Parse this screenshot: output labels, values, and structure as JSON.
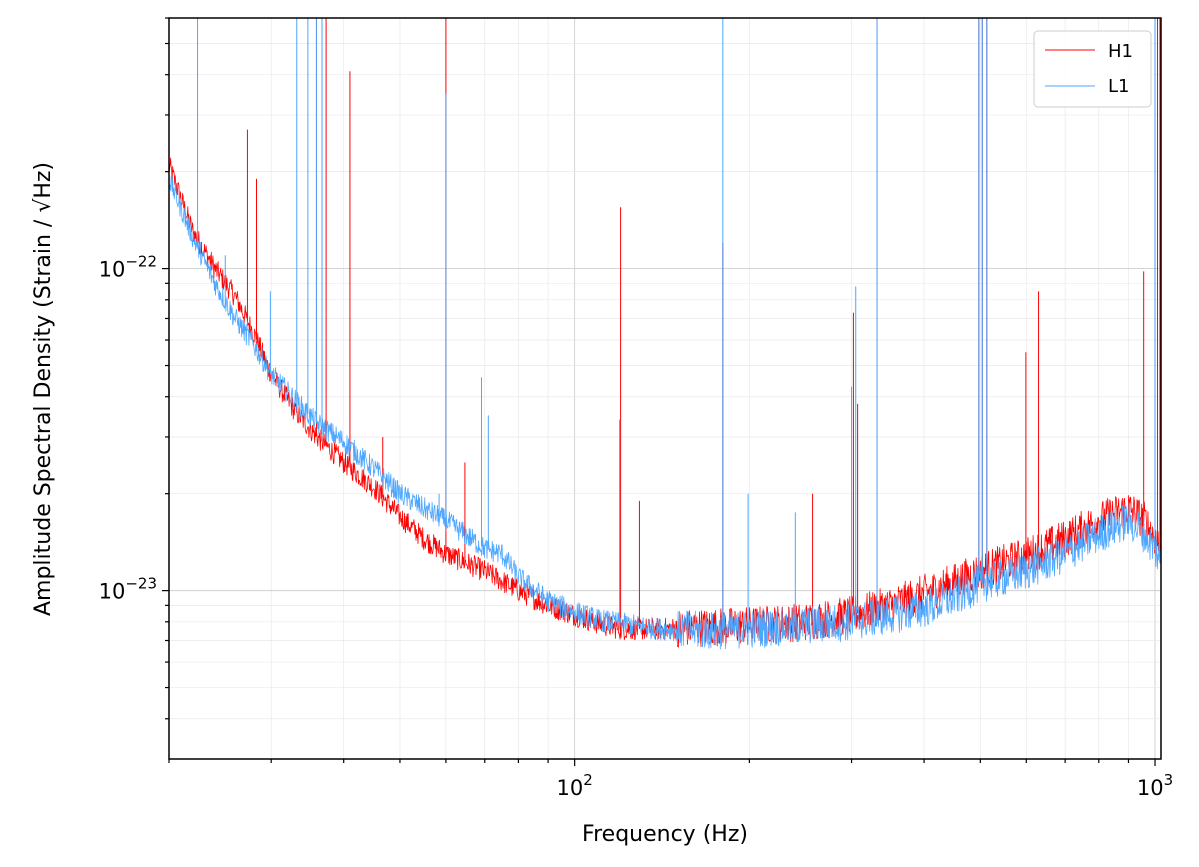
{
  "chart_data": {
    "type": "line",
    "xlabel": "Frequency (Hz)",
    "ylabel": "Amplitude Spectral Density (Strain / √Hz)",
    "x_scale": "log",
    "y_scale": "log",
    "xlim": [
      20,
      1024
    ],
    "ylim": [
      3e-24,
      6e-22
    ],
    "x_ticks": [
      {
        "value": 100,
        "base": "10",
        "exp": "2"
      },
      {
        "value": 1000,
        "base": "10",
        "exp": "3"
      }
    ],
    "y_ticks": [
      {
        "value": 1e-23,
        "base": "10",
        "exp": "−23"
      },
      {
        "value": 1e-22,
        "base": "10",
        "exp": "−22"
      }
    ],
    "grid": true,
    "legend_position": "top-right",
    "series": [
      {
        "name": "H1",
        "color": "#ff0000",
        "baseline": [
          [
            20,
            2.1e-22
          ],
          [
            22,
            1.3e-22
          ],
          [
            24,
            1e-22
          ],
          [
            26,
            8.2e-23
          ],
          [
            28,
            6.3e-23
          ],
          [
            30,
            4.7e-23
          ],
          [
            33,
            3.6e-23
          ],
          [
            36,
            3e-23
          ],
          [
            40,
            2.5e-23
          ],
          [
            45,
            2.1e-23
          ],
          [
            50,
            1.7e-23
          ],
          [
            55,
            1.45e-23
          ],
          [
            60,
            1.3e-23
          ],
          [
            70,
            1.15e-23
          ],
          [
            80,
            1e-23
          ],
          [
            90,
            9e-24
          ],
          [
            100,
            8.4e-24
          ],
          [
            110,
            7.9e-24
          ],
          [
            120,
            7.6e-24
          ],
          [
            140,
            7.6e-24
          ],
          [
            170,
            7.7e-24
          ],
          [
            200,
            7.8e-24
          ],
          [
            250,
            8e-24
          ],
          [
            300,
            8.4e-24
          ],
          [
            350,
            9e-24
          ],
          [
            400,
            9.8e-24
          ],
          [
            450,
            1.06e-23
          ],
          [
            500,
            1.15e-23
          ],
          [
            600,
            1.28e-23
          ],
          [
            700,
            1.45e-23
          ],
          [
            800,
            1.65e-23
          ],
          [
            900,
            1.8e-23
          ],
          [
            960,
            1.65e-23
          ],
          [
            1024,
            1.35e-23
          ]
        ],
        "peaks": [
          [
            23.6,
            1.1e-22
          ],
          [
            27.3,
            2.7e-22
          ],
          [
            28.3,
            1.9e-22
          ],
          [
            35.9,
            6e-22
          ],
          [
            36.7,
            6e-22
          ],
          [
            37.3,
            6e-22
          ],
          [
            41.0,
            4.1e-22
          ],
          [
            46.7,
            3e-23
          ],
          [
            60.0,
            6e-22
          ],
          [
            64.7,
            2.5e-23
          ],
          [
            120.0,
            1.55e-22
          ],
          [
            129.3,
            1.9e-23
          ],
          [
            180.0,
            1.2e-22
          ],
          [
            257.0,
            2e-23
          ],
          [
            302.2,
            7.3e-23
          ],
          [
            307.3,
            3.8e-23
          ],
          [
            331.9,
            6e-22
          ],
          [
            497.0,
            6e-22
          ],
          [
            504.0,
            6e-22
          ],
          [
            513.0,
            6e-22
          ],
          [
            599.1,
            5.5e-23
          ],
          [
            630.0,
            8.5e-23
          ],
          [
            956.0,
            9.8e-23
          ],
          [
            1000.0,
            6e-22
          ],
          [
            1010.0,
            6e-22
          ],
          [
            1022.0,
            6e-22
          ]
        ]
      },
      {
        "name": "L1",
        "color": "#4da6ff",
        "baseline": [
          [
            20,
            1.9e-22
          ],
          [
            22,
            1.25e-22
          ],
          [
            24,
            9e-23
          ],
          [
            26,
            7e-23
          ],
          [
            28,
            5.8e-23
          ],
          [
            30,
            4.7e-23
          ],
          [
            33,
            3.9e-23
          ],
          [
            36,
            3.3e-23
          ],
          [
            40,
            2.9e-23
          ],
          [
            45,
            2.4e-23
          ],
          [
            50,
            2e-23
          ],
          [
            55,
            1.8e-23
          ],
          [
            60,
            1.65e-23
          ],
          [
            70,
            1.35e-23
          ],
          [
            75,
            1.3e-23
          ],
          [
            80,
            1.1e-23
          ],
          [
            90,
            9.3e-24
          ],
          [
            100,
            8.6e-24
          ],
          [
            110,
            8.1e-24
          ],
          [
            120,
            7.9e-24
          ],
          [
            140,
            7.6e-24
          ],
          [
            170,
            7.5e-24
          ],
          [
            200,
            7.6e-24
          ],
          [
            250,
            7.8e-24
          ],
          [
            300,
            8e-24
          ],
          [
            350,
            8.4e-24
          ],
          [
            400,
            8.8e-24
          ],
          [
            450,
            9.5e-24
          ],
          [
            500,
            1.05e-23
          ],
          [
            600,
            1.15e-23
          ],
          [
            700,
            1.3e-23
          ],
          [
            800,
            1.5e-23
          ],
          [
            900,
            1.65e-23
          ],
          [
            960,
            1.5e-23
          ],
          [
            1024,
            1.25e-23
          ]
        ],
        "peaks": [
          [
            22.4,
            6e-22
          ],
          [
            25.0,
            1.1e-22
          ],
          [
            29.9,
            8.5e-23
          ],
          [
            33.2,
            6e-22
          ],
          [
            34.7,
            6e-22
          ],
          [
            35.9,
            6e-22
          ],
          [
            36.7,
            6e-22
          ],
          [
            58.4,
            2e-23
          ],
          [
            60.0,
            3.5e-22
          ],
          [
            69.1,
            4.6e-23
          ],
          [
            71.0,
            3.5e-23
          ],
          [
            119.5,
            3.4e-23
          ],
          [
            180.0,
            6e-22
          ],
          [
            199.0,
            2e-23
          ],
          [
            240.0,
            1.75e-23
          ],
          [
            300.0,
            4.3e-23
          ],
          [
            305.0,
            8.8e-23
          ],
          [
            331.9,
            6e-22
          ],
          [
            497.0,
            6e-22
          ],
          [
            504.0,
            6e-22
          ],
          [
            513.0,
            6e-22
          ],
          [
            1000.0,
            6e-22
          ],
          [
            1018.0,
            6e-22
          ]
        ]
      }
    ]
  }
}
